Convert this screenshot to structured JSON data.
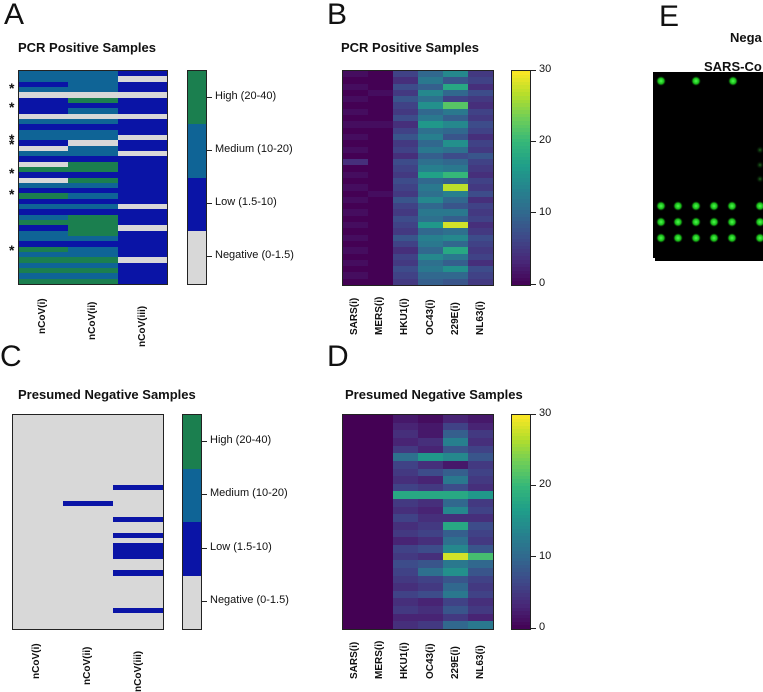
{
  "panels": {
    "A": {
      "letter": "A",
      "title": "PCR Positive Samples"
    },
    "B": {
      "letter": "B",
      "title": "PCR Positive Samples"
    },
    "C": {
      "letter": "C",
      "title": "Presumed Negative Samples"
    },
    "D": {
      "letter": "D",
      "title": "Presumed Negative Samples"
    },
    "E": {
      "letter": "E",
      "title": "Nega",
      "subtitle": "SARS-Co"
    }
  },
  "colors": {
    "high": "#1b7f4f",
    "medium": "#0f6496",
    "low": "#0a14a6",
    "negative": "#d8d8d8",
    "viridis": [
      "#440154",
      "#482878",
      "#3e4989",
      "#31688e",
      "#26828e",
      "#1f9e89",
      "#35b779",
      "#6ece58",
      "#b5de2b",
      "#fde725"
    ]
  },
  "chart_data": [
    {
      "type": "heatmap",
      "panel": "A",
      "title": "PCR Positive Samples",
      "columns": [
        "nCoV(i)",
        "nCoV(ii)",
        "nCoV(iii)"
      ],
      "categories": [
        "High (20-40)",
        "Medium (10-20)",
        "Low (1.5-10)",
        "Negative (0-1.5)"
      ],
      "asterisk_count": 7,
      "rows": [
        [
          "medium",
          "medium",
          "low"
        ],
        [
          "medium",
          "medium",
          "negative"
        ],
        [
          "low",
          "medium",
          "low"
        ],
        [
          "medium",
          "medium",
          "low"
        ],
        [
          "negative",
          "negative",
          "negative"
        ],
        [
          "low",
          "high",
          "low"
        ],
        [
          "low",
          "low",
          "low"
        ],
        [
          "low",
          "medium",
          "low"
        ],
        [
          "negative",
          "negative",
          "negative"
        ],
        [
          "medium",
          "medium",
          "low"
        ],
        [
          "low",
          "low",
          "low"
        ],
        [
          "medium",
          "medium",
          "low"
        ],
        [
          "medium",
          "medium",
          "negative"
        ],
        [
          "low",
          "negative",
          "low"
        ],
        [
          "negative",
          "medium",
          "low"
        ],
        [
          "medium",
          "medium",
          "negative"
        ],
        [
          "low",
          "low",
          "low"
        ],
        [
          "negative",
          "high",
          "low"
        ],
        [
          "high",
          "high",
          "low"
        ],
        [
          "low",
          "low",
          "low"
        ],
        [
          "negative",
          "high",
          "low"
        ],
        [
          "medium",
          "medium",
          "low"
        ],
        [
          "low",
          "low",
          "low"
        ],
        [
          "high",
          "medium",
          "low"
        ],
        [
          "low",
          "low",
          "low"
        ],
        [
          "medium",
          "medium",
          "negative"
        ],
        [
          "low",
          "low",
          "low"
        ],
        [
          "medium",
          "high",
          "low"
        ],
        [
          "high",
          "high",
          "low"
        ],
        [
          "low",
          "high",
          "negative"
        ],
        [
          "medium",
          "high",
          "low"
        ],
        [
          "medium",
          "medium",
          "low"
        ],
        [
          "low",
          "low",
          "low"
        ],
        [
          "high",
          "medium",
          "low"
        ],
        [
          "medium",
          "medium",
          "low"
        ],
        [
          "high",
          "high",
          "negative"
        ],
        [
          "medium",
          "medium",
          "low"
        ],
        [
          "high",
          "high",
          "low"
        ],
        [
          "medium",
          "medium",
          "low"
        ],
        [
          "high",
          "high",
          "low"
        ]
      ]
    },
    {
      "type": "heatmap",
      "panel": "B",
      "title": "PCR Positive Samples",
      "columns": [
        "SARS(i)",
        "MERS(i)",
        "HKU1(i)",
        "OC43(i)",
        "229E(i)",
        "NL63(i)"
      ],
      "colorbar": {
        "min": 0,
        "max": 30,
        "ticks": [
          0,
          10,
          20,
          30
        ]
      },
      "rows": [
        [
          1,
          0,
          6,
          10,
          14,
          5
        ],
        [
          0,
          0,
          4,
          12,
          8,
          6
        ],
        [
          1,
          0,
          7,
          9,
          18,
          4
        ],
        [
          0,
          1,
          5,
          14,
          10,
          7
        ],
        [
          1,
          0,
          8,
          11,
          6,
          5
        ],
        [
          0,
          0,
          6,
          15,
          22,
          4
        ],
        [
          1,
          0,
          5,
          10,
          12,
          6
        ],
        [
          0,
          0,
          7,
          12,
          9,
          5
        ],
        [
          1,
          1,
          4,
          16,
          14,
          7
        ],
        [
          0,
          0,
          6,
          11,
          10,
          6
        ],
        [
          1,
          0,
          8,
          13,
          8,
          4
        ],
        [
          0,
          0,
          5,
          10,
          15,
          6
        ],
        [
          1,
          0,
          6,
          12,
          11,
          5
        ],
        [
          0,
          0,
          4,
          9,
          7,
          8
        ],
        [
          4,
          0,
          7,
          11,
          10,
          6
        ],
        [
          0,
          0,
          6,
          13,
          12,
          5
        ],
        [
          1,
          0,
          5,
          17,
          20,
          4
        ],
        [
          0,
          0,
          7,
          10,
          9,
          6
        ],
        [
          1,
          0,
          6,
          12,
          27,
          5
        ],
        [
          0,
          1,
          5,
          11,
          13,
          7
        ],
        [
          1,
          0,
          8,
          14,
          10,
          4
        ],
        [
          0,
          0,
          6,
          10,
          8,
          6
        ],
        [
          1,
          0,
          5,
          12,
          12,
          5
        ],
        [
          0,
          0,
          7,
          11,
          9,
          6
        ],
        [
          1,
          0,
          6,
          16,
          28,
          4
        ],
        [
          0,
          0,
          5,
          10,
          11,
          5
        ],
        [
          1,
          0,
          8,
          13,
          14,
          7
        ],
        [
          0,
          0,
          6,
          12,
          10,
          6
        ],
        [
          1,
          0,
          4,
          10,
          18,
          5
        ],
        [
          0,
          0,
          6,
          14,
          12,
          6
        ],
        [
          1,
          0,
          5,
          11,
          9,
          4
        ],
        [
          0,
          0,
          7,
          12,
          15,
          7
        ],
        [
          1,
          0,
          6,
          10,
          10,
          6
        ],
        [
          0,
          0,
          5,
          9,
          8,
          5
        ]
      ]
    },
    {
      "type": "heatmap",
      "panel": "C",
      "title": "Presumed Negative Samples",
      "columns": [
        "nCoV(i)",
        "nCoV(ii)",
        "nCoV(iii)"
      ],
      "categories": [
        "High (20-40)",
        "Medium (10-20)",
        "Low (1.5-10)",
        "Negative (0-1.5)"
      ],
      "rows": [
        [
          "negative",
          "negative",
          "negative"
        ],
        [
          "negative",
          "negative",
          "negative"
        ],
        [
          "negative",
          "negative",
          "negative"
        ],
        [
          "negative",
          "negative",
          "negative"
        ],
        [
          "negative",
          "negative",
          "negative"
        ],
        [
          "negative",
          "negative",
          "negative"
        ],
        [
          "negative",
          "negative",
          "negative"
        ],
        [
          "negative",
          "negative",
          "negative"
        ],
        [
          "negative",
          "negative",
          "negative"
        ],
        [
          "negative",
          "negative",
          "negative"
        ],
        [
          "negative",
          "negative",
          "negative"
        ],
        [
          "negative",
          "negative",
          "negative"
        ],
        [
          "negative",
          "negative",
          "negative"
        ],
        [
          "negative",
          "negative",
          "low"
        ],
        [
          "negative",
          "negative",
          "negative"
        ],
        [
          "negative",
          "negative",
          "negative"
        ],
        [
          "negative",
          "low",
          "negative"
        ],
        [
          "negative",
          "negative",
          "negative"
        ],
        [
          "negative",
          "negative",
          "negative"
        ],
        [
          "negative",
          "negative",
          "low"
        ],
        [
          "negative",
          "negative",
          "negative"
        ],
        [
          "negative",
          "negative",
          "negative"
        ],
        [
          "negative",
          "negative",
          "low"
        ],
        [
          "negative",
          "negative",
          "negative"
        ],
        [
          "negative",
          "negative",
          "low"
        ],
        [
          "negative",
          "negative",
          "low"
        ],
        [
          "negative",
          "negative",
          "low"
        ],
        [
          "negative",
          "negative",
          "negative"
        ],
        [
          "negative",
          "negative",
          "negative"
        ],
        [
          "negative",
          "negative",
          "low"
        ],
        [
          "negative",
          "negative",
          "negative"
        ],
        [
          "negative",
          "negative",
          "negative"
        ],
        [
          "negative",
          "negative",
          "negative"
        ],
        [
          "negative",
          "negative",
          "negative"
        ],
        [
          "negative",
          "negative",
          "negative"
        ],
        [
          "negative",
          "negative",
          "negative"
        ],
        [
          "negative",
          "negative",
          "low"
        ],
        [
          "negative",
          "negative",
          "negative"
        ],
        [
          "negative",
          "negative",
          "negative"
        ],
        [
          "negative",
          "negative",
          "negative"
        ]
      ]
    },
    {
      "type": "heatmap",
      "panel": "D",
      "title": "Presumed Negative Samples",
      "columns": [
        "SARS(i)",
        "MERS(i)",
        "HKU1(i)",
        "OC43(i)",
        "229E(i)",
        "NL63(i)"
      ],
      "colorbar": {
        "min": 0,
        "max": 30,
        "ticks": [
          0,
          10,
          20,
          30
        ]
      },
      "rows": [
        [
          0,
          0,
          2,
          1,
          3,
          2
        ],
        [
          0,
          0,
          3,
          2,
          6,
          3
        ],
        [
          0,
          0,
          4,
          2,
          9,
          5
        ],
        [
          0,
          0,
          3,
          4,
          13,
          4
        ],
        [
          0,
          0,
          5,
          3,
          8,
          6
        ],
        [
          0,
          0,
          11,
          16,
          14,
          8
        ],
        [
          0,
          0,
          6,
          4,
          2,
          5
        ],
        [
          0,
          0,
          5,
          7,
          9,
          6
        ],
        [
          0,
          0,
          4,
          3,
          12,
          5
        ],
        [
          0,
          0,
          6,
          5,
          7,
          4
        ],
        [
          0,
          0,
          18,
          18,
          18,
          16
        ],
        [
          0,
          0,
          5,
          4,
          10,
          5
        ],
        [
          0,
          0,
          4,
          3,
          14,
          6
        ],
        [
          0,
          0,
          6,
          4,
          4,
          4
        ],
        [
          0,
          0,
          4,
          5,
          18,
          7
        ],
        [
          0,
          0,
          5,
          6,
          9,
          6
        ],
        [
          0,
          0,
          3,
          4,
          11,
          5
        ],
        [
          0,
          0,
          6,
          7,
          14,
          8
        ],
        [
          0,
          0,
          5,
          4,
          28,
          21
        ],
        [
          0,
          0,
          7,
          8,
          12,
          10
        ],
        [
          0,
          0,
          6,
          11,
          15,
          8
        ],
        [
          0,
          0,
          5,
          6,
          8,
          6
        ],
        [
          0,
          0,
          4,
          5,
          10,
          5
        ],
        [
          0,
          0,
          6,
          7,
          12,
          6
        ],
        [
          0,
          0,
          4,
          3,
          6,
          4
        ],
        [
          0,
          0,
          5,
          4,
          8,
          5
        ],
        [
          0,
          0,
          3,
          3,
          5,
          3
        ],
        [
          0,
          0,
          4,
          5,
          10,
          12
        ]
      ]
    }
  ]
}
